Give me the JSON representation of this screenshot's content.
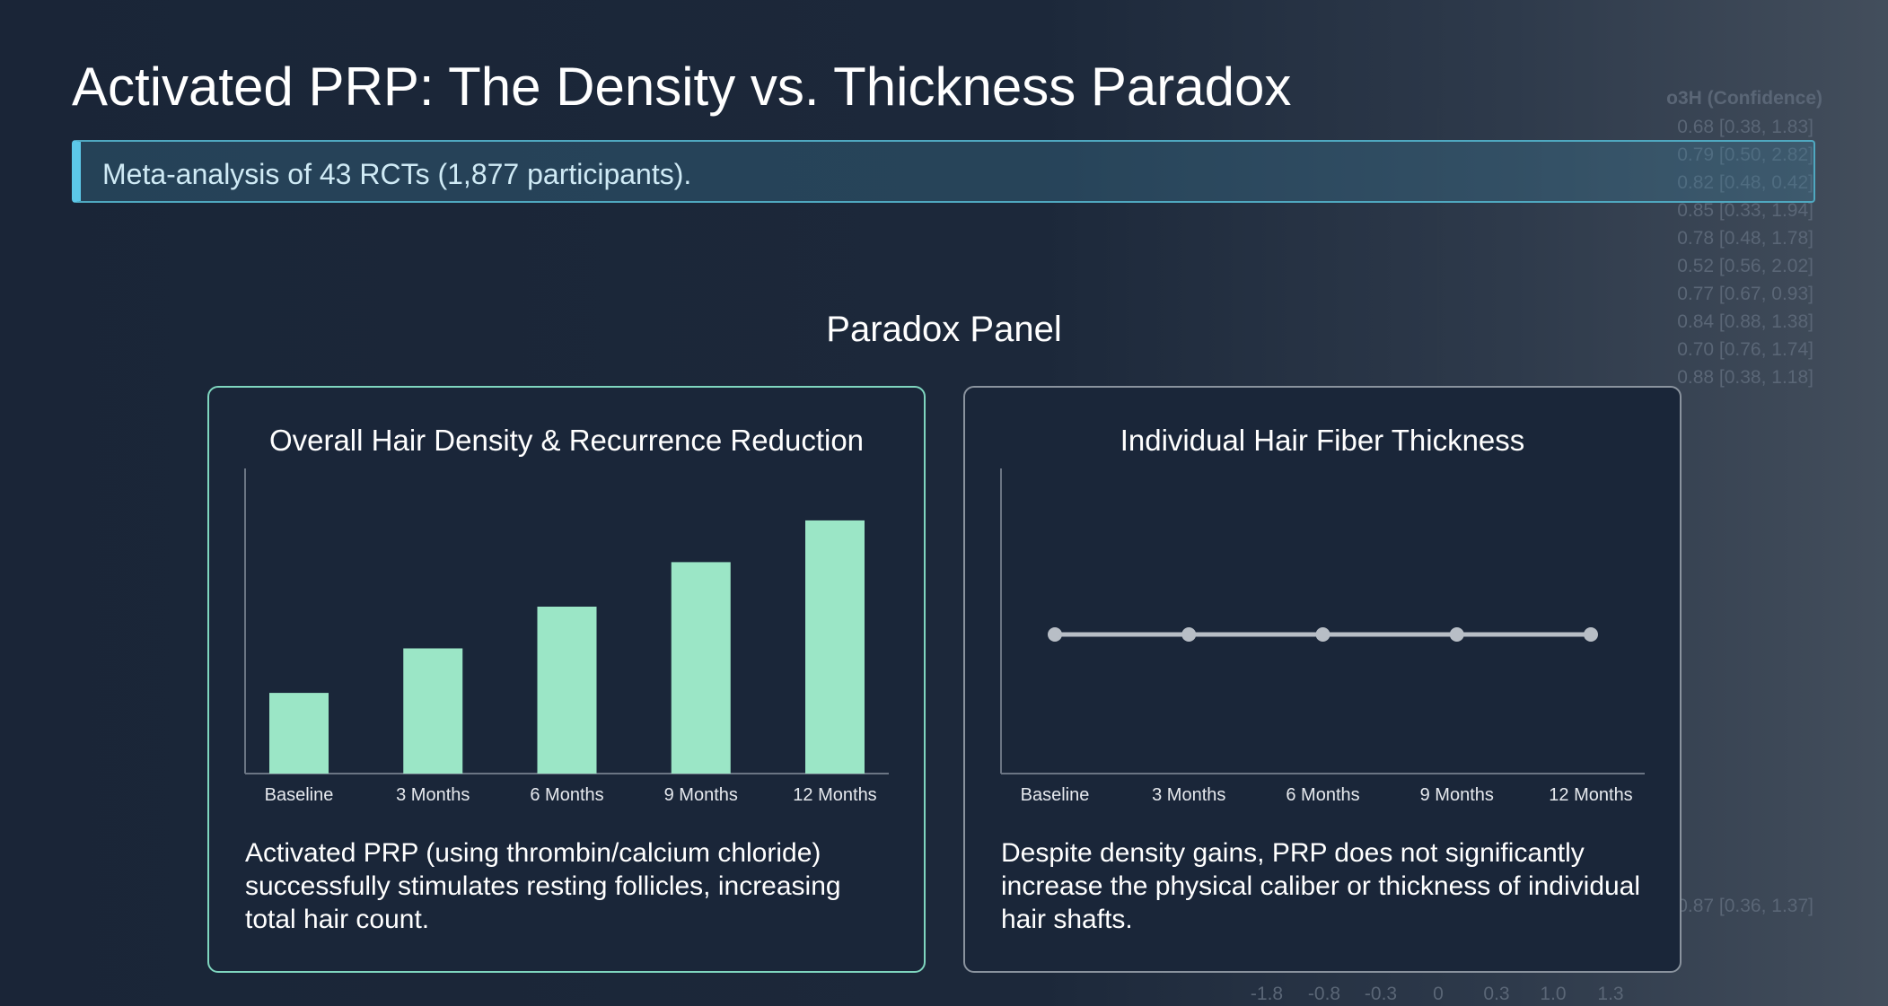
{
  "header": {
    "title": "Activated PRP: The Density vs. Thickness Paradox",
    "subtitle": "Meta-analysis of 43 RCTs (1,877 participants)."
  },
  "panel_heading": "Paradox Panel",
  "panels": [
    {
      "title": "Overall Hair Density & Recurrence Reduction",
      "chart": {
        "type": "bar",
        "categories": [
          "Baseline",
          "3 Months",
          "6 Months",
          "9 Months",
          "12 Months"
        ],
        "values": [
          29,
          45,
          60,
          76,
          91
        ],
        "ylim": [
          0,
          100
        ],
        "color": "#9be6c6"
      },
      "description": "Activated PRP (using thrombin/calcium chloride) successfully stimulates resting follicles, increasing total hair count."
    },
    {
      "title": "Individual Hair Fiber Thickness",
      "chart": {
        "type": "line",
        "categories": [
          "Baseline",
          "3 Months",
          "6 Months",
          "9 Months",
          "12 Months"
        ],
        "values": [
          50,
          50,
          50,
          50,
          50
        ],
        "ylim": [
          0,
          100
        ],
        "color": "#b8bec6"
      },
      "description": "Despite density gains, PRP does not significantly increase the physical caliber or thickness of individual hair shafts."
    }
  ],
  "background_plot": {
    "header": "o3H (Confidence)",
    "estimates": [
      "0.68 [0.38, 1.83]",
      "0.79 [0.50, 2.82]",
      "0.82 [0.48, 0.42]",
      "0.85 [0.33, 1.94]",
      "0.78 [0.48, 1.78]",
      "0.52 [0.56, 2.02]",
      "0.77 [0.67, 0.93]",
      "0.84 [0.88, 1.38]",
      "0.70 [0.76, 1.74]",
      "0.88 [0.38, 1.18]"
    ],
    "summary": "0.87 [0.36, 1.37]",
    "axis_labels": [
      "-1.8",
      "-0.8",
      "-0.3",
      "0",
      "0.3",
      "1.0",
      "1.3"
    ]
  }
}
